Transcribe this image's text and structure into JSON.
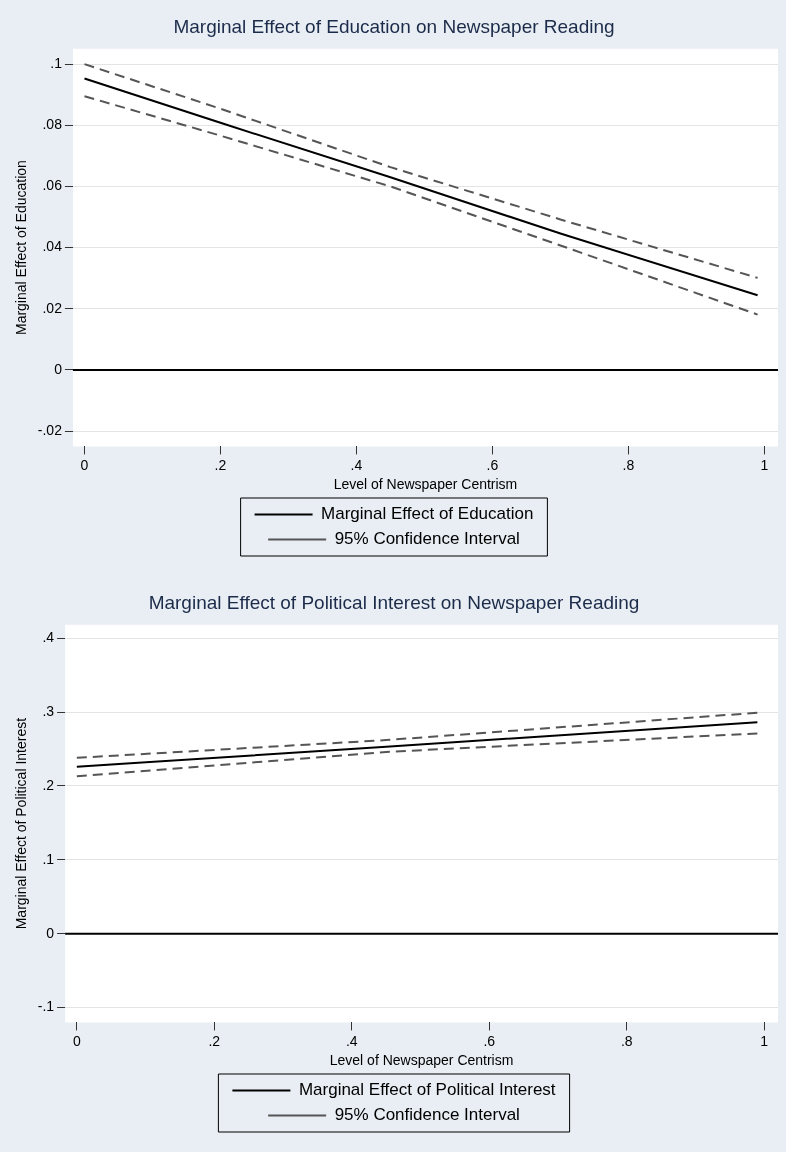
{
  "chart_data": [
    {
      "type": "line",
      "title": "Marginal Effect of Education on Newspaper Reading",
      "xlabel": "Level of Newspaper Centrism",
      "ylabel": "Marginal Effect of Education",
      "x": [
        0,
        0.2,
        0.45,
        0.7,
        0.99
      ],
      "series": [
        {
          "name": "Marginal Effect of Education",
          "color": "#000000",
          "line_style": "solid",
          "values": [
            0.0953,
            0.0808,
            0.063,
            0.0446,
            0.0244
          ]
        },
        {
          "name": "95% Confidence Interval",
          "color": "#555555",
          "line_style": "dashed",
          "values": [
            0.1,
            0.0854,
            0.0663,
            0.0492,
            0.0301
          ]
        },
        {
          "color": "#555555",
          "line_style": "dashed",
          "values": [
            0.0895,
            0.0766,
            0.06,
            0.0407,
            0.0181
          ]
        }
      ],
      "xlim": [
        -0.017,
        1.02
      ],
      "xticks": [
        {
          "value": 0,
          "label": "0"
        },
        {
          "value": 0.2,
          "label": ".2"
        },
        {
          "value": 0.4,
          "label": ".4"
        },
        {
          "value": 0.6,
          "label": ".6"
        },
        {
          "value": 0.8,
          "label": ".8"
        },
        {
          "value": 1,
          "label": "1"
        }
      ],
      "ylim": [
        -0.025,
        0.105
      ],
      "yticks": [
        {
          "value": -0.02,
          "label": "-.02"
        },
        0,
        {
          "value": 0.02,
          "label": ".02"
        },
        {
          "value": 0.04,
          "label": ".04"
        },
        {
          "value": 0.06,
          "label": ".06"
        },
        {
          "value": 0.08,
          "label": ".08"
        },
        {
          "value": 0.1,
          "label": ".1"
        }
      ],
      "ref_lines": [
        {
          "axis": "y",
          "value": 0,
          "color": "#000000"
        }
      ],
      "grid": "y",
      "legend": "bottom",
      "marker": "none"
    },
    {
      "type": "line",
      "title": "Marginal Effect of Political Interest on Newspaper Reading",
      "xlabel": "Level of Newspaper Centrism",
      "ylabel": "Marginal Effect of Political Interest",
      "x": [
        0,
        0.45,
        0.99
      ],
      "series": [
        {
          "name": "Marginal Effect of Political Interest",
          "color": "#000000",
          "line_style": "solid",
          "values": [
            0.226,
            0.253,
            0.286
          ]
        },
        {
          "name": "95% Confidence Interval",
          "color": "#555555",
          "line_style": "dashed",
          "values": [
            0.238,
            0.262,
            0.299
          ]
        },
        {
          "color": "#555555",
          "line_style": "dashed",
          "values": [
            0.213,
            0.246,
            0.271
          ]
        }
      ],
      "xlim": [
        -0.017,
        1.02
      ],
      "xticks": [
        {
          "value": 0,
          "label": "0"
        },
        {
          "value": 0.2,
          "label": ".2"
        },
        {
          "value": 0.4,
          "label": ".4"
        },
        {
          "value": 0.6,
          "label": ".6"
        },
        {
          "value": 0.8,
          "label": ".8"
        },
        {
          "value": 1,
          "label": "1"
        }
      ],
      "ylim": [
        -0.12,
        0.418
      ],
      "yticks": [
        {
          "value": -0.1,
          "label": "-.1"
        },
        0,
        {
          "value": 0.1,
          "label": ".1"
        },
        {
          "value": 0.2,
          "label": ".2"
        },
        {
          "value": 0.3,
          "label": ".3"
        },
        {
          "value": 0.4,
          "label": ".4"
        }
      ],
      "ref_lines": [
        {
          "axis": "y",
          "value": 0,
          "color": "#000000"
        }
      ],
      "grid": "y",
      "legend": "bottom",
      "marker": "none"
    }
  ]
}
